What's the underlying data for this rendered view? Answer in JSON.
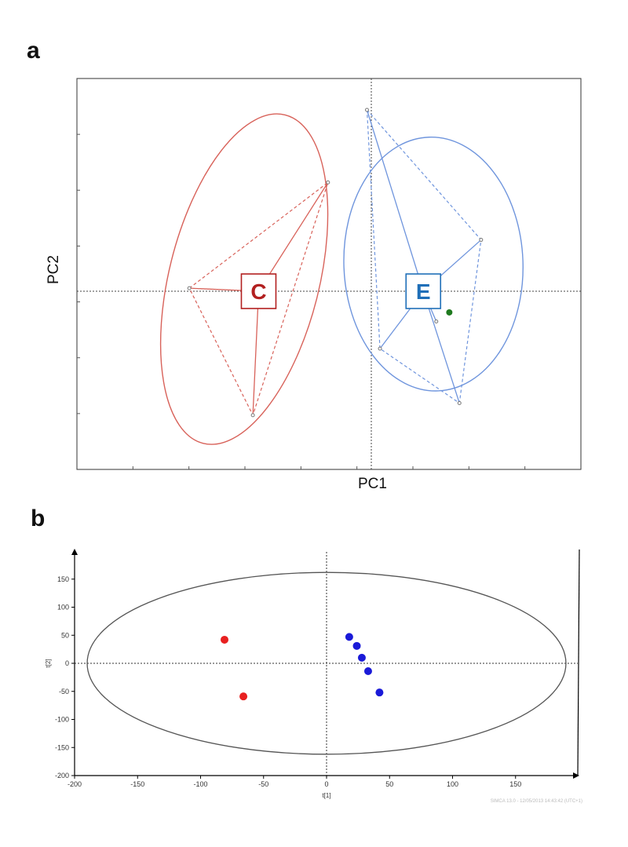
{
  "chart_data": [
    {
      "panel": "a",
      "type": "scatter",
      "xlabel": "PC1",
      "ylabel": "PC2",
      "grid": false,
      "xlim": [
        -10,
        7
      ],
      "ylim": [
        -6,
        7
      ],
      "groups": [
        {
          "name": "C",
          "color": "#d8625a",
          "label_color": "#b22020",
          "points": [
            [
              -6.3,
              0.1
            ],
            [
              -1.5,
              3.6
            ],
            [
              -4.1,
              -4.1
            ]
          ],
          "centroid": [
            -3.9,
            0.0
          ],
          "ellipse": {
            "cx": -4.4,
            "cy": 0.4,
            "rx": 2.6,
            "ry": 5.6,
            "angle": 14
          }
        },
        {
          "name": "E",
          "color": "#6f95dd",
          "label_color": "#1f6fb8",
          "points": [
            [
              -0.15,
              6.0
            ],
            [
              3.8,
              1.7
            ],
            [
              3.05,
              -3.7
            ],
            [
              0.3,
              -1.9
            ],
            [
              2.25,
              -1.0
            ]
          ],
          "centroid": [
            1.8,
            0.0
          ],
          "ellipse": {
            "cx": 2.15,
            "cy": 0.9,
            "rx": 3.1,
            "ry": 4.2,
            "angle": -2
          }
        }
      ],
      "extra_points": [
        {
          "x": 2.7,
          "y": -0.7,
          "color": "#1f7a1f"
        }
      ]
    },
    {
      "panel": "b",
      "type": "scatter",
      "xlabel": "t[1]",
      "ylabel": "t[2]",
      "xlim": [
        -200,
        200
      ],
      "ylim": [
        -200,
        200
      ],
      "xticks": [
        -200,
        -150,
        -100,
        -50,
        0,
        50,
        100,
        150
      ],
      "yticks": [
        150,
        100,
        50,
        0,
        -50,
        -100,
        -150,
        -200
      ],
      "ellipse": {
        "rx": 190,
        "ry": 162
      },
      "series": [
        {
          "color": "#e82020",
          "points": [
            [
              -81,
              42
            ],
            [
              -66,
              -59
            ]
          ]
        },
        {
          "color": "#1a1ad8",
          "points": [
            [
              18,
              47
            ],
            [
              24,
              31
            ],
            [
              28,
              10
            ],
            [
              33,
              -14
            ],
            [
              42,
              -52
            ]
          ]
        }
      ],
      "watermark": "SIMCA 13.0 - 12/05/2013 14:43:42 (UTC+1)"
    }
  ],
  "panel_labels": {
    "a": "a",
    "b": "b"
  }
}
